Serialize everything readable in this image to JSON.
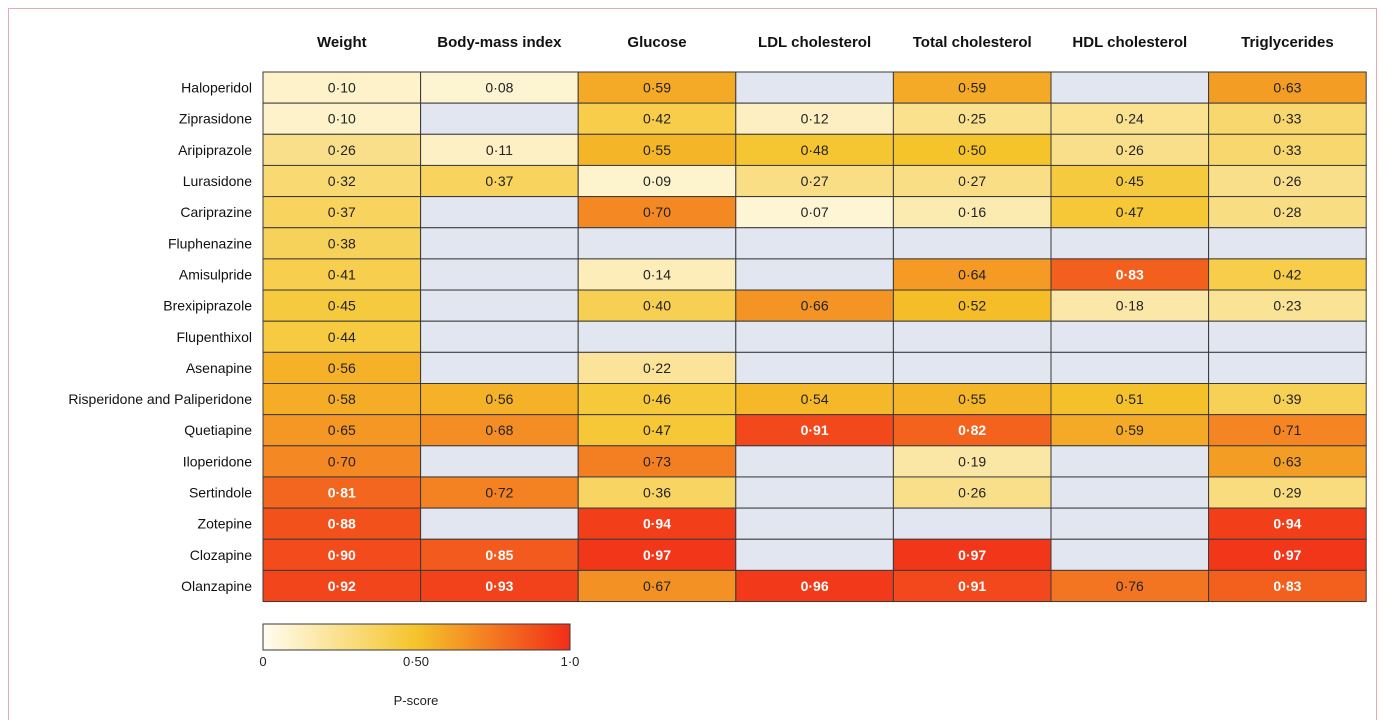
{
  "chart_data": {
    "type": "heatmap",
    "columns": [
      "Weight",
      "Body-mass index",
      "Glucose",
      "LDL cholesterol",
      "Total cholesterol",
      "HDL cholesterol",
      "Triglycerides"
    ],
    "rows": [
      "Haloperidol",
      "Ziprasidone",
      "Aripiprazole",
      "Lurasidone",
      "Cariprazine",
      "Fluphenazine",
      "Amisulpride",
      "Brexipiprazole",
      "Flupenthixol",
      "Asenapine",
      "Risperidone and Paliperidone",
      "Quetiapine",
      "Iloperidone",
      "Sertindole",
      "Zotepine",
      "Clozapine",
      "Olanzapine"
    ],
    "values": [
      [
        0.1,
        0.08,
        0.59,
        null,
        0.59,
        null,
        0.63
      ],
      [
        0.1,
        null,
        0.42,
        0.12,
        0.25,
        0.24,
        0.33
      ],
      [
        0.26,
        0.11,
        0.55,
        0.48,
        0.5,
        0.26,
        0.33
      ],
      [
        0.32,
        0.37,
        0.09,
        0.27,
        0.27,
        0.45,
        0.26
      ],
      [
        0.37,
        null,
        0.7,
        0.07,
        0.16,
        0.47,
        0.28
      ],
      [
        0.38,
        null,
        null,
        null,
        null,
        null,
        null
      ],
      [
        0.41,
        null,
        0.14,
        null,
        0.64,
        0.83,
        0.42
      ],
      [
        0.45,
        null,
        0.4,
        0.66,
        0.52,
        0.18,
        0.23
      ],
      [
        0.44,
        null,
        null,
        null,
        null,
        null,
        null
      ],
      [
        0.56,
        null,
        0.22,
        null,
        null,
        null,
        null
      ],
      [
        0.58,
        0.56,
        0.46,
        0.54,
        0.55,
        0.51,
        0.39
      ],
      [
        0.65,
        0.68,
        0.47,
        0.91,
        0.82,
        0.59,
        0.71
      ],
      [
        0.7,
        null,
        0.73,
        null,
        0.19,
        null,
        0.63
      ],
      [
        0.81,
        0.72,
        0.36,
        null,
        0.26,
        null,
        0.29
      ],
      [
        0.88,
        null,
        0.94,
        null,
        null,
        null,
        0.94
      ],
      [
        0.9,
        0.85,
        0.97,
        null,
        0.97,
        null,
        0.97
      ],
      [
        0.92,
        0.93,
        0.67,
        0.96,
        0.91,
        0.76,
        0.83
      ]
    ],
    "colorbar": {
      "label": "P-score",
      "ticks": [
        "0",
        "0·50",
        "1·0"
      ],
      "range": [
        0,
        1
      ]
    },
    "colors": {
      "missing": "#e2e6f1",
      "cell_border": "#3a3a3a"
    }
  }
}
